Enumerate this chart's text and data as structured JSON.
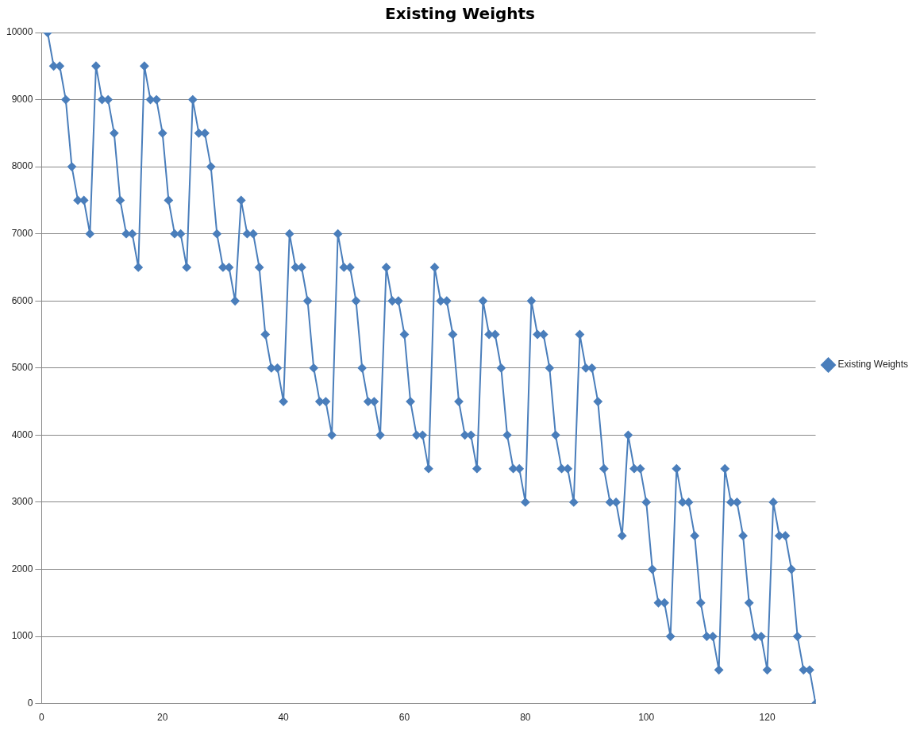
{
  "chart_data": {
    "type": "line",
    "title": "Existing Weights",
    "x": [
      1,
      2,
      3,
      4,
      5,
      6,
      7,
      8,
      9,
      10,
      11,
      12,
      13,
      14,
      15,
      16,
      17,
      18,
      19,
      20,
      21,
      22,
      23,
      24,
      25,
      26,
      27,
      28,
      29,
      30,
      31,
      32,
      33,
      34,
      35,
      36,
      37,
      38,
      39,
      40,
      41,
      42,
      43,
      44,
      45,
      46,
      47,
      48,
      49,
      50,
      51,
      52,
      53,
      54,
      55,
      56,
      57,
      58,
      59,
      60,
      61,
      62,
      63,
      64,
      65,
      66,
      67,
      68,
      69,
      70,
      71,
      72,
      73,
      74,
      75,
      76,
      77,
      78,
      79,
      80,
      81,
      82,
      83,
      84,
      85,
      86,
      87,
      88,
      89,
      90,
      91,
      92,
      93,
      94,
      95,
      96,
      97,
      98,
      99,
      100,
      101,
      102,
      103,
      104,
      105,
      106,
      107,
      108,
      109,
      110,
      111,
      112,
      113,
      114,
      115,
      116,
      117,
      118,
      119,
      120,
      121,
      122,
      123,
      124,
      125,
      126,
      127,
      128
    ],
    "series": [
      {
        "name": "Existing Weights",
        "color": "#4a7ebb",
        "values": [
          10000,
          9500,
          9500,
          9000,
          8000,
          7500,
          7500,
          7000,
          9500,
          9000,
          9000,
          8500,
          7500,
          7000,
          7000,
          6500,
          9500,
          9000,
          9000,
          8500,
          7500,
          7000,
          7000,
          6500,
          9000,
          8500,
          8500,
          8000,
          7000,
          6500,
          6500,
          6000,
          7500,
          7000,
          7000,
          6500,
          5500,
          5000,
          5000,
          4500,
          7000,
          6500,
          6500,
          6000,
          5000,
          4500,
          4500,
          4000,
          7000,
          6500,
          6500,
          6000,
          5000,
          4500,
          4500,
          4000,
          6500,
          6000,
          6000,
          5500,
          4500,
          4000,
          4000,
          3500,
          6500,
          6000,
          6000,
          5500,
          4500,
          4000,
          4000,
          3500,
          6000,
          5500,
          5500,
          5000,
          4000,
          3500,
          3500,
          3000,
          6000,
          5500,
          5500,
          5000,
          4000,
          3500,
          3500,
          3000,
          5500,
          5000,
          5000,
          4500,
          3500,
          3000,
          3000,
          2500,
          4000,
          3500,
          3500,
          3000,
          2000,
          1500,
          1500,
          1000,
          3500,
          3000,
          3000,
          2500,
          1500,
          1000,
          1000,
          500,
          3500,
          3000,
          3000,
          2500,
          1500,
          1000,
          1000,
          500,
          3000,
          2500,
          2500,
          2000,
          1000,
          500,
          500,
          0
        ]
      }
    ],
    "xlim": [
      0,
      128
    ],
    "xticks": [
      0,
      20,
      40,
      60,
      80,
      100,
      120
    ],
    "ylim": [
      0,
      10000
    ],
    "yticks": [
      0,
      1000,
      2000,
      3000,
      4000,
      5000,
      6000,
      7000,
      8000,
      9000,
      10000
    ],
    "grid": "y",
    "legend": "right",
    "marker": "diamond",
    "line_style": "solid"
  }
}
